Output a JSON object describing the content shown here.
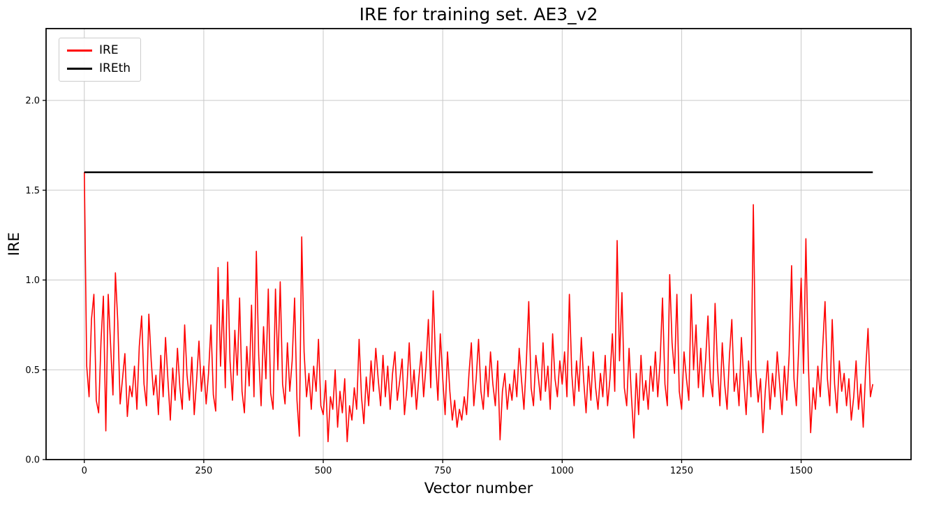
{
  "figure": {
    "background": "#ffffff"
  },
  "chart_data": {
    "type": "line",
    "title": "IRE for training set. AE3_v2",
    "xlabel": "Vector number",
    "ylabel": "IRE",
    "xlim": [
      -80,
      1730
    ],
    "ylim": [
      0,
      2.4
    ],
    "xticks": [
      0,
      250,
      500,
      750,
      1000,
      1250,
      1500
    ],
    "yticks": [
      0.0,
      0.5,
      1.0,
      1.5,
      2.0
    ],
    "grid": true,
    "style": {
      "grid_color": "#c8c8c8",
      "spine_color": "#000000",
      "line_width": 1.6,
      "threshold_width": 2.6
    },
    "legend": {
      "position": "upper-left",
      "entries": [
        {
          "label": "IRE",
          "color": "#ff0000"
        },
        {
          "label": "IREth",
          "color": "#000000"
        }
      ]
    },
    "series": [
      {
        "name": "IRE",
        "color": "#ff0000",
        "kind": "line",
        "x_start": 0,
        "x_step": 5,
        "values": [
          1.6,
          0.52,
          0.35,
          0.78,
          0.92,
          0.33,
          0.26,
          0.66,
          0.91,
          0.16,
          0.92,
          0.64,
          0.36,
          1.04,
          0.77,
          0.31,
          0.45,
          0.59,
          0.24,
          0.41,
          0.35,
          0.52,
          0.28,
          0.63,
          0.8,
          0.42,
          0.3,
          0.81,
          0.55,
          0.36,
          0.47,
          0.25,
          0.58,
          0.35,
          0.68,
          0.44,
          0.22,
          0.51,
          0.33,
          0.62,
          0.4,
          0.28,
          0.75,
          0.47,
          0.33,
          0.57,
          0.25,
          0.44,
          0.66,
          0.38,
          0.52,
          0.31,
          0.48,
          0.75,
          0.36,
          0.27,
          1.07,
          0.52,
          0.89,
          0.4,
          1.1,
          0.55,
          0.33,
          0.72,
          0.47,
          0.9,
          0.38,
          0.26,
          0.63,
          0.41,
          0.86,
          0.35,
          1.16,
          0.58,
          0.3,
          0.74,
          0.45,
          0.95,
          0.37,
          0.28,
          0.95,
          0.5,
          0.99,
          0.42,
          0.31,
          0.65,
          0.38,
          0.55,
          0.9,
          0.33,
          0.13,
          1.24,
          0.6,
          0.35,
          0.48,
          0.28,
          0.52,
          0.38,
          0.67,
          0.3,
          0.25,
          0.44,
          0.1,
          0.35,
          0.28,
          0.5,
          0.18,
          0.38,
          0.26,
          0.45,
          0.1,
          0.3,
          0.22,
          0.4,
          0.28,
          0.67,
          0.35,
          0.2,
          0.46,
          0.3,
          0.55,
          0.38,
          0.62,
          0.45,
          0.3,
          0.58,
          0.35,
          0.52,
          0.28,
          0.48,
          0.6,
          0.33,
          0.44,
          0.56,
          0.25,
          0.4,
          0.65,
          0.35,
          0.5,
          0.28,
          0.45,
          0.6,
          0.35,
          0.52,
          0.78,
          0.4,
          0.94,
          0.55,
          0.33,
          0.7,
          0.45,
          0.25,
          0.6,
          0.38,
          0.22,
          0.33,
          0.18,
          0.28,
          0.22,
          0.35,
          0.25,
          0.48,
          0.65,
          0.3,
          0.45,
          0.67,
          0.38,
          0.28,
          0.52,
          0.35,
          0.6,
          0.42,
          0.3,
          0.55,
          0.11,
          0.38,
          0.48,
          0.28,
          0.42,
          0.33,
          0.5,
          0.35,
          0.62,
          0.44,
          0.28,
          0.55,
          0.88,
          0.4,
          0.3,
          0.58,
          0.46,
          0.33,
          0.65,
          0.38,
          0.52,
          0.28,
          0.7,
          0.45,
          0.35,
          0.55,
          0.42,
          0.6,
          0.35,
          0.92,
          0.48,
          0.3,
          0.55,
          0.38,
          0.68,
          0.44,
          0.26,
          0.52,
          0.33,
          0.6,
          0.4,
          0.28,
          0.48,
          0.35,
          0.58,
          0.3,
          0.45,
          0.7,
          0.38,
          1.22,
          0.55,
          0.93,
          0.4,
          0.3,
          0.62,
          0.35,
          0.12,
          0.48,
          0.25,
          0.58,
          0.33,
          0.44,
          0.28,
          0.52,
          0.38,
          0.6,
          0.35,
          0.55,
          0.9,
          0.42,
          0.3,
          1.03,
          0.65,
          0.48,
          0.92,
          0.38,
          0.28,
          0.6,
          0.45,
          0.33,
          0.92,
          0.5,
          0.75,
          0.4,
          0.62,
          0.35,
          0.55,
          0.8,
          0.45,
          0.35,
          0.87,
          0.52,
          0.3,
          0.65,
          0.42,
          0.28,
          0.58,
          0.78,
          0.38,
          0.48,
          0.3,
          0.68,
          0.44,
          0.25,
          0.55,
          0.35,
          1.42,
          0.5,
          0.32,
          0.45,
          0.15,
          0.38,
          0.55,
          0.28,
          0.48,
          0.35,
          0.6,
          0.42,
          0.25,
          0.52,
          0.33,
          0.58,
          1.08,
          0.45,
          0.3,
          0.62,
          1.01,
          0.48,
          1.23,
          0.55,
          0.15,
          0.4,
          0.28,
          0.52,
          0.35,
          0.62,
          0.88,
          0.45,
          0.3,
          0.78,
          0.42,
          0.26,
          0.55,
          0.38,
          0.48,
          0.3,
          0.45,
          0.22,
          0.35,
          0.55,
          0.28,
          0.42,
          0.18,
          0.5,
          0.73,
          0.35,
          0.42
        ]
      },
      {
        "name": "IREth",
        "color": "#000000",
        "kind": "hline",
        "y": 1.6,
        "x_range": [
          0,
          1650
        ]
      }
    ]
  }
}
